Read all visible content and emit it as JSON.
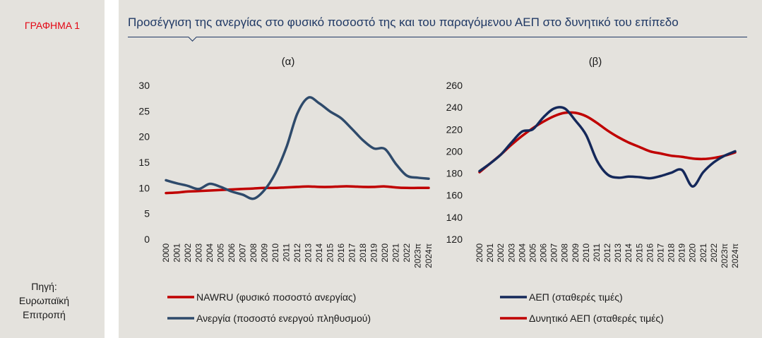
{
  "figure_label": "ΓΡΑΦΗΜΑ 1",
  "main_title": "Προσέγγιση της ανεργίας στο φυσικό ποσοστό της και του παραγόμενου ΑΕΠ στο δυνητικό του επίπεδο",
  "source_lines": [
    "Πηγή:",
    "Ευρωπαϊκή",
    "Επιτροπή"
  ],
  "chart_data": [
    {
      "type": "line",
      "title": "(α)",
      "categories": [
        "2000",
        "2001",
        "2002",
        "2003",
        "2004",
        "2005",
        "2006",
        "2007",
        "2008",
        "2009",
        "2010",
        "2011",
        "2012",
        "2013",
        "2014",
        "2015",
        "2016",
        "2017",
        "2018",
        "2019",
        "2020",
        "2021",
        "2022",
        "2023π",
        "2024π"
      ],
      "ylim": [
        0,
        30
      ],
      "yticks": [
        0,
        5,
        10,
        15,
        20,
        25,
        30
      ],
      "series": [
        {
          "name": "Ανεργία (ποσοστό ενεργού πληθυσμού)",
          "color": "#2e4a6b",
          "values": [
            11.5,
            10.9,
            10.4,
            9.8,
            10.8,
            10.2,
            9.3,
            8.7,
            7.9,
            9.6,
            12.9,
            17.9,
            24.5,
            27.6,
            26.5,
            24.9,
            23.6,
            21.5,
            19.3,
            17.7,
            17.6,
            14.7,
            12.4,
            12.0,
            11.8
          ]
        },
        {
          "name": "NAWRU (φυσικό ποσοστό ανεργίας)",
          "color": "#c00000",
          "values": [
            9.0,
            9.1,
            9.3,
            9.4,
            9.5,
            9.6,
            9.7,
            9.8,
            9.9,
            10.0,
            10.0,
            10.1,
            10.2,
            10.3,
            10.2,
            10.2,
            10.3,
            10.3,
            10.2,
            10.2,
            10.3,
            10.1,
            10.0,
            10.0,
            10.0
          ]
        }
      ],
      "legend": [
        "NAWRU (φυσικό ποσοστό ανεργίας)",
        "Ανεργία (ποσοστό ενεργού πληθυσμού)"
      ]
    },
    {
      "type": "line",
      "title": "(β)",
      "categories": [
        "2000",
        "2001",
        "2002",
        "2003",
        "2004",
        "2005",
        "2006",
        "2007",
        "2008",
        "2009",
        "2010",
        "2011",
        "2012",
        "2013",
        "2014",
        "2015",
        "2016",
        "2017",
        "2018",
        "2019",
        "2020",
        "2021",
        "2022",
        "2023π",
        "2024π"
      ],
      "ylim": [
        120,
        260
      ],
      "yticks": [
        120,
        140,
        160,
        180,
        200,
        220,
        240,
        260
      ],
      "series": [
        {
          "name": "ΑΕΠ (σταθερές τιμές)",
          "color": "#14285a",
          "values": [
            182,
            189,
            197,
            208,
            218,
            220,
            231,
            239,
            239,
            228,
            215,
            192,
            179,
            176,
            177,
            176.5,
            175.5,
            177.5,
            180.5,
            183,
            168,
            181,
            190,
            196,
            200
          ]
        },
        {
          "name": "Δυνητικό ΑΕΠ (σταθερές τιμές)",
          "color": "#c00000",
          "values": [
            181,
            189,
            197,
            206,
            214,
            221,
            227,
            232,
            235,
            235,
            232,
            226,
            219,
            213,
            208,
            204,
            200,
            198,
            196,
            195,
            193.5,
            193,
            194,
            196,
            199
          ]
        }
      ],
      "legend": [
        "ΑΕΠ (σταθερές τιμές)",
        "Δυνητικό ΑΕΠ (σταθερές τιμές)"
      ]
    }
  ]
}
